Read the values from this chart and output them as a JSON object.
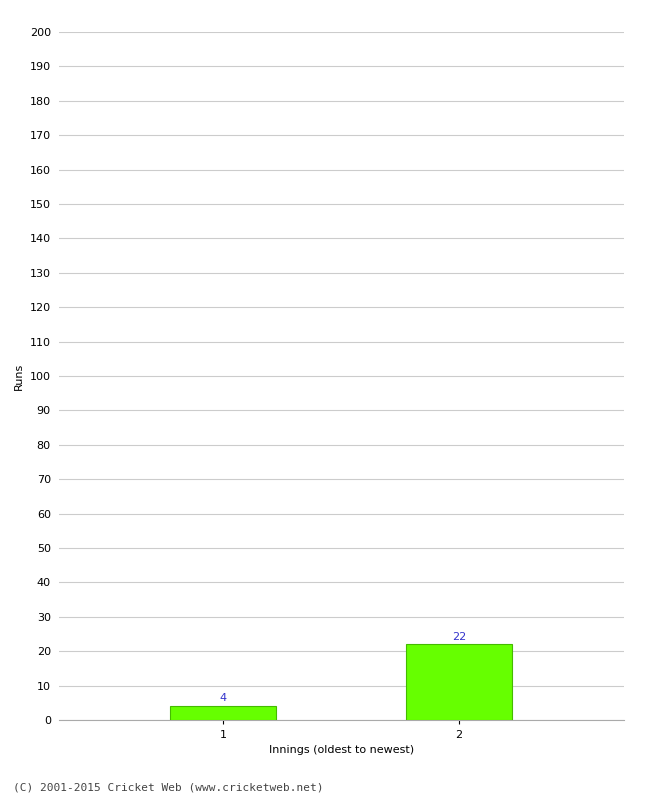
{
  "categories": [
    "1",
    "2"
  ],
  "values": [
    4,
    22
  ],
  "bar_color": "#66ff00",
  "bar_edgecolor": "#44bb00",
  "ylabel": "Runs",
  "xlabel": "Innings (oldest to newest)",
  "ylim": [
    0,
    200
  ],
  "yticks": [
    0,
    10,
    20,
    30,
    40,
    50,
    60,
    70,
    80,
    90,
    100,
    110,
    120,
    130,
    140,
    150,
    160,
    170,
    180,
    190,
    200
  ],
  "annotation_color": "#3333cc",
  "annotation_fontsize": 8,
  "footer_text": "(C) 2001-2015 Cricket Web (www.cricketweb.net)",
  "footer_fontsize": 8,
  "background_color": "#ffffff",
  "grid_color": "#cccccc",
  "bar_width": 0.45,
  "x_positions": [
    1,
    2
  ],
  "xlim": [
    0.3,
    2.7
  ]
}
